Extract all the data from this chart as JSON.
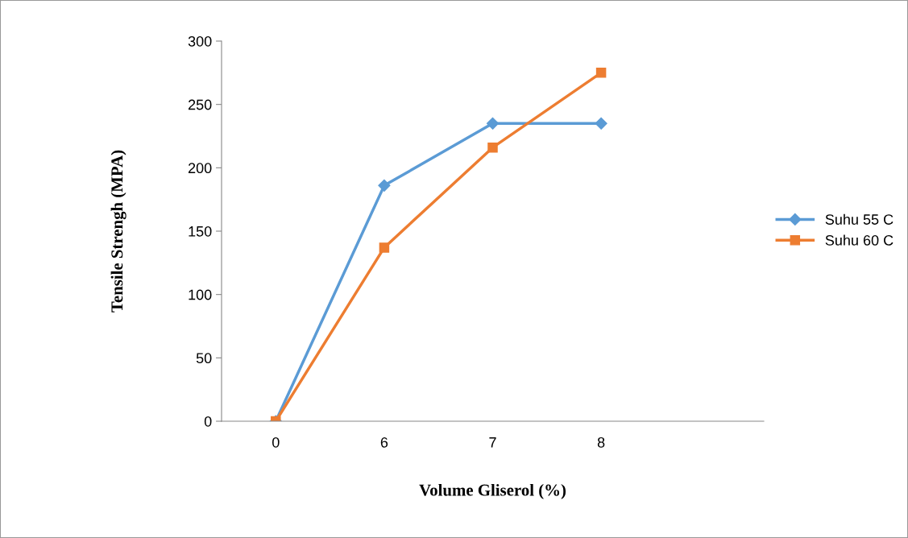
{
  "chart_data": {
    "type": "line",
    "xlabel": "Volume Gliserol (%)",
    "ylabel": "Tensile Strengh (MPA)",
    "categories": [
      "0",
      "6",
      "7",
      "8",
      null
    ],
    "series": [
      {
        "name": "Suhu 55 C",
        "color": "#5b9bd5",
        "values": [
          0,
          186,
          235,
          235,
          null
        ],
        "marker": "diamond"
      },
      {
        "name": "Suhu 60 C",
        "color": "#ed7d31",
        "values": [
          0,
          137,
          216,
          275,
          null
        ],
        "marker": "square"
      }
    ],
    "ylim": [
      0,
      300
    ],
    "yticks": [
      0,
      50,
      100,
      150,
      200,
      250,
      300
    ],
    "grid": false,
    "legend": "right",
    "line_style": "solid"
  }
}
